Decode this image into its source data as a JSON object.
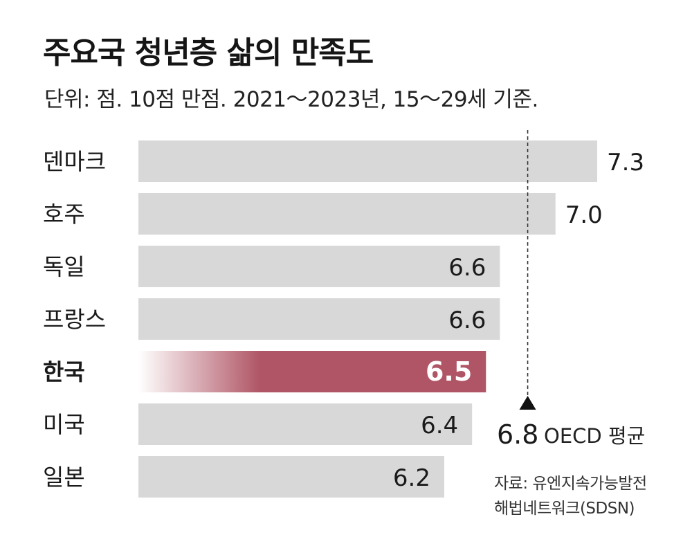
{
  "chart_data": {
    "type": "bar",
    "orientation": "horizontal",
    "title": "주요국 청년층 삶의 만족도",
    "subtitle": "단위: 점. 10점 만점. 2021～2023년, 15～29세 기준.",
    "categories": [
      "덴마크",
      "호주",
      "독일",
      "프랑스",
      "한국",
      "미국",
      "일본"
    ],
    "values": [
      7.3,
      7.0,
      6.6,
      6.6,
      6.5,
      6.4,
      6.2
    ],
    "value_labels": [
      "7.3",
      "7.0",
      "6.6",
      "6.6",
      "6.5",
      "6.4",
      "6.2"
    ],
    "highlight": "한국",
    "xlim": [
      4.0,
      7.3
    ],
    "reference_line": {
      "value": 6.8,
      "value_label": "6.8",
      "label": "OECD 평균"
    },
    "colors": {
      "bar": "#d8d8d8",
      "highlight": "#b05565",
      "line": "#333333"
    }
  },
  "source": {
    "line1": "자료: 유엔지속가능발전",
    "line2": "해법네트워크(SDSN)"
  }
}
